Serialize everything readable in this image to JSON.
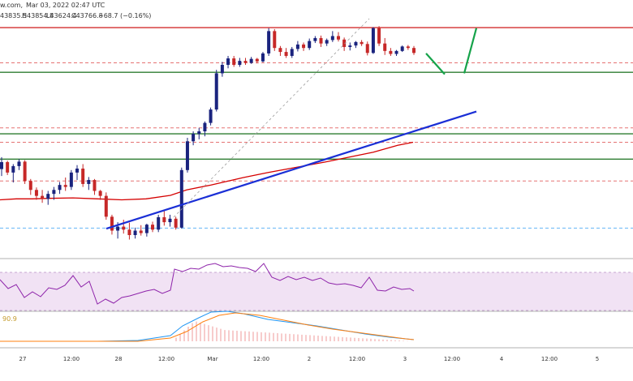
{
  "header": {
    "source": "w.com,",
    "date": "Mar 03, 2022 02:47 UTC",
    "open": "43835.5",
    "high": "H43854.8",
    "low": "L43624.4",
    "close": "C43766.8",
    "change": "−68.7 (−0.16%)"
  },
  "macd_value": "90.9",
  "colors": {
    "bull": "#1a237e",
    "bear": "#c62828",
    "ma": "#d50000",
    "trendline": "#1a2fd6",
    "support": "#2e7d32",
    "resistance": "#d32f2f",
    "rsi": "#8e24aa",
    "macd": "#2196f3",
    "signal": "#ff7f0e",
    "arrow": "#16a34a"
  },
  "chart_data": {
    "type": "candlestick",
    "x_tick_labels": [
      "27",
      "12:00",
      "28",
      "12:00",
      "Mar",
      "12:00",
      "2",
      "12:00",
      "3",
      "12:00",
      "4",
      "12:00",
      "5"
    ],
    "candles": [
      [
        41320,
        41560,
        41180,
        41460
      ],
      [
        41460,
        41490,
        41200,
        41250
      ],
      [
        41250,
        41420,
        41050,
        41380
      ],
      [
        41380,
        41520,
        41300,
        41470
      ],
      [
        41470,
        41500,
        41020,
        41080
      ],
      [
        41080,
        41120,
        40800,
        40900
      ],
      [
        40900,
        40950,
        40700,
        40780
      ],
      [
        40780,
        40900,
        40640,
        40720
      ],
      [
        40720,
        40880,
        40600,
        40820
      ],
      [
        40820,
        40960,
        40700,
        40900
      ],
      [
        40900,
        41060,
        40820,
        41000
      ],
      [
        41000,
        41150,
        40880,
        40960
      ],
      [
        40960,
        41300,
        40900,
        41250
      ],
      [
        41250,
        41400,
        41100,
        41330
      ],
      [
        41330,
        41420,
        40960,
        41020
      ],
      [
        41020,
        41160,
        40900,
        41100
      ],
      [
        41100,
        41120,
        40800,
        40880
      ],
      [
        40880,
        40900,
        40700,
        40780
      ],
      [
        40780,
        40850,
        40300,
        40360
      ],
      [
        40360,
        40400,
        40000,
        40080
      ],
      [
        40080,
        40250,
        39920,
        40160
      ],
      [
        40160,
        40300,
        40020,
        40100
      ],
      [
        40100,
        40240,
        39900,
        39990
      ],
      [
        39990,
        40140,
        39920,
        40080
      ],
      [
        40080,
        40190,
        39980,
        40030
      ],
      [
        40030,
        40220,
        39960,
        40200
      ],
      [
        40200,
        40260,
        40050,
        40100
      ],
      [
        40100,
        40400,
        40050,
        40350
      ],
      [
        40350,
        40500,
        40180,
        40250
      ],
      [
        40250,
        40400,
        40160,
        40320
      ],
      [
        40320,
        40360,
        40100,
        40140
      ],
      [
        40140,
        41350,
        40120,
        41300
      ],
      [
        41300,
        41950,
        41250,
        41880
      ],
      [
        41880,
        42080,
        41800,
        42030
      ],
      [
        42030,
        42150,
        41920,
        42080
      ],
      [
        42080,
        42280,
        41980,
        42250
      ],
      [
        42250,
        42560,
        42200,
        42520
      ],
      [
        42520,
        43320,
        42480,
        43250
      ],
      [
        43250,
        43480,
        43180,
        43420
      ],
      [
        43420,
        43600,
        43350,
        43550
      ],
      [
        43550,
        43600,
        43380,
        43420
      ],
      [
        43420,
        43560,
        43380,
        43500
      ],
      [
        43500,
        43560,
        43420,
        43460
      ],
      [
        43460,
        43580,
        43440,
        43540
      ],
      [
        43540,
        43560,
        43450,
        43490
      ],
      [
        43490,
        43680,
        43470,
        43650
      ],
      [
        43650,
        44160,
        43600,
        44100
      ],
      [
        44100,
        44140,
        43700,
        43760
      ],
      [
        43760,
        43800,
        43600,
        43680
      ],
      [
        43680,
        43760,
        43560,
        43600
      ],
      [
        43600,
        43780,
        43560,
        43740
      ],
      [
        43740,
        43900,
        43690,
        43830
      ],
      [
        43830,
        43870,
        43700,
        43760
      ],
      [
        43760,
        43950,
        43720,
        43900
      ],
      [
        43900,
        44000,
        43860,
        43960
      ],
      [
        43960,
        44010,
        43780,
        43850
      ],
      [
        43850,
        43950,
        43800,
        43920
      ],
      [
        43920,
        44100,
        43880,
        44000
      ],
      [
        44000,
        44080,
        43890,
        43930
      ],
      [
        43930,
        43970,
        43700,
        43780
      ],
      [
        43780,
        43870,
        43710,
        43810
      ],
      [
        43810,
        43900,
        43760,
        43880
      ],
      [
        43880,
        43920,
        43800,
        43840
      ],
      [
        43840,
        43890,
        43610,
        43660
      ],
      [
        43660,
        44180,
        43640,
        44160
      ],
      [
        44160,
        44200,
        43800,
        43850
      ],
      [
        43850,
        43960,
        43620,
        43700
      ],
      [
        43700,
        43760,
        43600,
        43640
      ],
      [
        43640,
        43720,
        43600,
        43700
      ],
      [
        43700,
        43810,
        43680,
        43790
      ],
      [
        43790,
        43820,
        43720,
        43760
      ],
      [
        43760,
        43800,
        43620,
        43660
      ]
    ],
    "moving_average": [
      [
        0,
        40700
      ],
      [
        20,
        40720
      ],
      [
        40,
        40720
      ],
      [
        60,
        40730
      ],
      [
        90,
        40740
      ],
      [
        120,
        40720
      ],
      [
        150,
        40700
      ],
      [
        180,
        40720
      ],
      [
        210,
        40790
      ],
      [
        230,
        40900
      ],
      [
        260,
        41000
      ],
      [
        300,
        41150
      ],
      [
        330,
        41250
      ],
      [
        370,
        41370
      ],
      [
        400,
        41460
      ],
      [
        430,
        41560
      ],
      [
        460,
        41660
      ],
      [
        490,
        41800
      ],
      [
        509,
        41860
      ]
    ],
    "trendline": [
      [
        131,
        40120
      ],
      [
        587,
        42480
      ]
    ],
    "resistance_level": 44170,
    "support_levels": [
      43270,
      42030,
      41520
    ],
    "dashed_levels": [
      43460,
      42150,
      41860,
      41080,
      40130
    ],
    "projection_arrows": [
      [
        [
          525,
          43650
        ],
        [
          548,
          43230
        ]
      ],
      [
        [
          572,
          43250
        ],
        [
          587,
          44160
        ]
      ]
    ],
    "ylim": [
      39500,
      44400
    ]
  }
}
